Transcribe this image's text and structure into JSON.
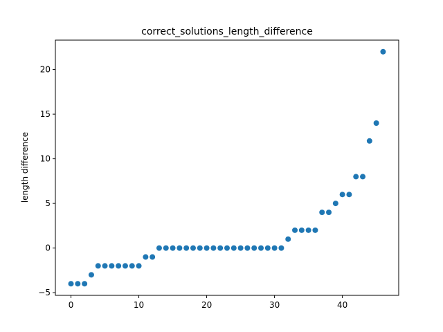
{
  "chart_data": {
    "type": "scatter",
    "title": "correct_solutions_length_difference",
    "xlabel": "",
    "ylabel": "length difference",
    "xlim": [
      -2.3,
      48.3
    ],
    "ylim": [
      -5.3,
      23.3
    ],
    "xticks": [
      0,
      10,
      20,
      30,
      40
    ],
    "yticks": [
      -5,
      0,
      5,
      10,
      15,
      20
    ],
    "grid": false,
    "color": "#1f77b4",
    "series": [
      {
        "x": [
          0,
          1,
          2,
          3,
          4,
          5,
          6,
          7,
          8,
          9,
          10,
          11,
          12,
          13,
          14,
          15,
          16,
          17,
          18,
          19,
          20,
          21,
          22,
          23,
          24,
          25,
          26,
          27,
          28,
          29,
          30,
          31,
          32,
          33,
          34,
          35,
          36,
          37,
          38,
          39,
          40,
          41,
          42,
          43,
          44,
          45,
          46
        ],
        "y": [
          -4,
          -4,
          -4,
          -3,
          -2,
          -2,
          -2,
          -2,
          -2,
          -2,
          -2,
          -1,
          -1,
          0,
          0,
          0,
          0,
          0,
          0,
          0,
          0,
          0,
          0,
          0,
          0,
          0,
          0,
          0,
          0,
          0,
          0,
          0,
          1,
          2,
          2,
          2,
          2,
          4,
          4,
          5,
          6,
          6,
          8,
          8,
          12,
          14,
          22
        ]
      }
    ]
  }
}
